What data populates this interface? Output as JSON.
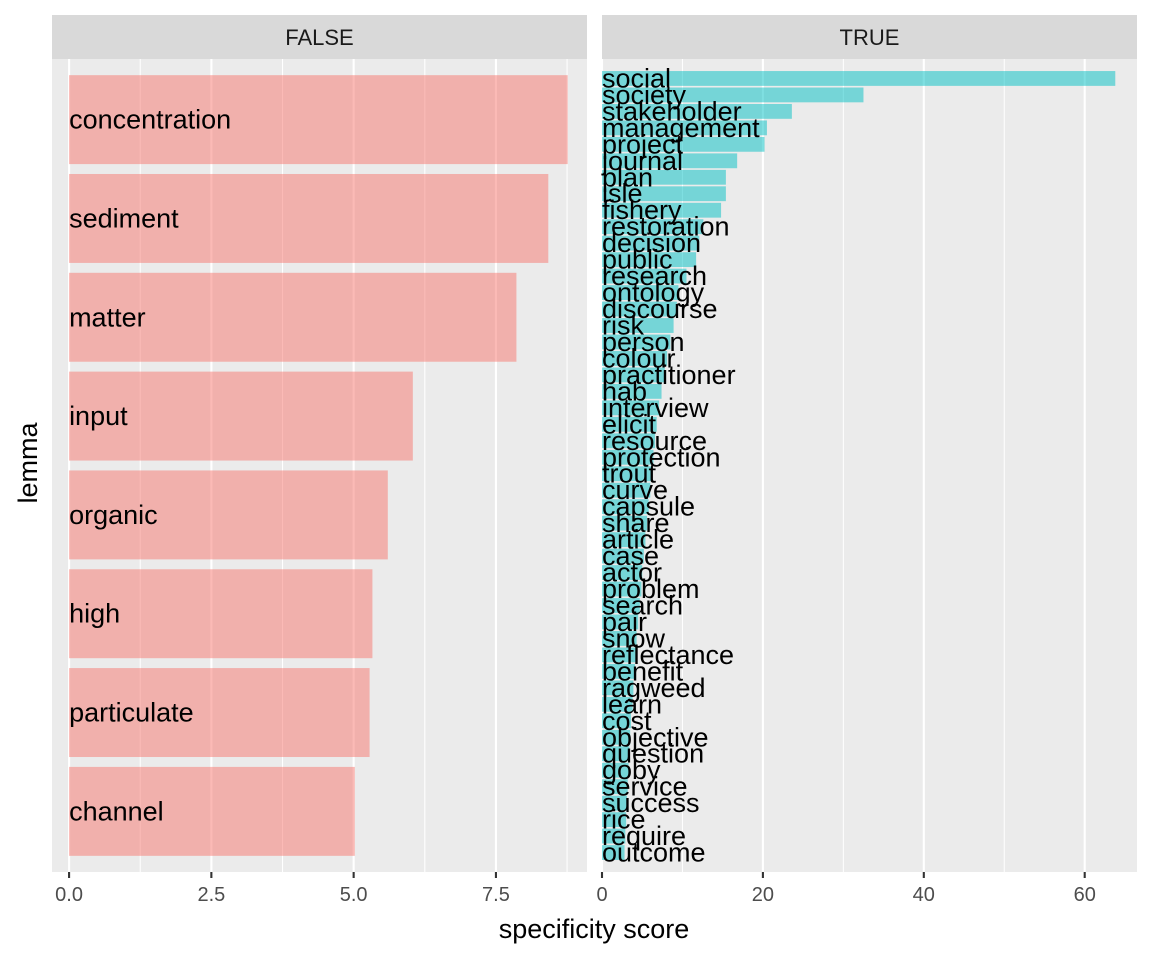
{
  "chart_data": {
    "type": "bar",
    "orientation": "horizontal",
    "xlabel": "specificity score",
    "ylabel": "lemma",
    "grid": true,
    "legend": "none",
    "facets": [
      {
        "label": "FALSE",
        "color": "#F8766D",
        "xlim": [
          -0.3,
          9.1
        ],
        "ticks": [
          0,
          2.5,
          5,
          7.5
        ],
        "tick_labels": [
          "0.0",
          "2.5",
          "5.0",
          "7.5"
        ],
        "minor_ticks": [
          1.25,
          3.75,
          6.25,
          8.75
        ],
        "categories": [
          "concentration",
          "sediment",
          "matter",
          "input",
          "organic",
          "high",
          "particulate",
          "channel"
        ],
        "values": [
          8.76,
          8.42,
          7.86,
          6.04,
          5.6,
          5.33,
          5.28,
          5.02
        ]
      },
      {
        "label": "TRUE",
        "color": "#00BFC4",
        "xlim": [
          0,
          66.5
        ],
        "ticks": [
          0,
          20,
          40,
          60
        ],
        "tick_labels": [
          "0",
          "20",
          "40",
          "60"
        ],
        "minor_ticks": [
          10,
          30,
          50
        ],
        "categories": [
          "social",
          "society",
          "stakeholder",
          "management",
          "project",
          "journal",
          "plan",
          "isle",
          "fishery",
          "restoration",
          "decision",
          "public",
          "research",
          "ontology",
          "discourse",
          "risk",
          "person",
          "colour",
          "practitioner",
          "hab",
          "interview",
          "elicit",
          "resource",
          "protection",
          "trout",
          "curve",
          "capsule",
          "share",
          "article",
          "case",
          "actor",
          "problem",
          "search",
          "pair",
          "snow",
          "reflectance",
          "benefit",
          "ragweed",
          "learn",
          "cost",
          "objective",
          "question",
          "goby",
          "service",
          "success",
          "rice",
          "require",
          "outcome"
        ],
        "values": [
          63.8,
          32.5,
          23.6,
          20.5,
          20.2,
          16.8,
          15.4,
          15.4,
          14.8,
          12.6,
          12.1,
          11.7,
          10.5,
          9.5,
          9.3,
          8.9,
          8.5,
          8.1,
          7.8,
          7.4,
          7.1,
          6.8,
          6.6,
          6.4,
          6.2,
          6.0,
          5.8,
          5.6,
          5.4,
          5.2,
          5.0,
          4.9,
          4.7,
          4.5,
          4.3,
          4.2,
          4.1,
          3.9,
          3.8,
          3.6,
          3.5,
          3.4,
          3.3,
          3.2,
          3.1,
          3.0,
          2.9,
          2.8
        ]
      }
    ]
  }
}
